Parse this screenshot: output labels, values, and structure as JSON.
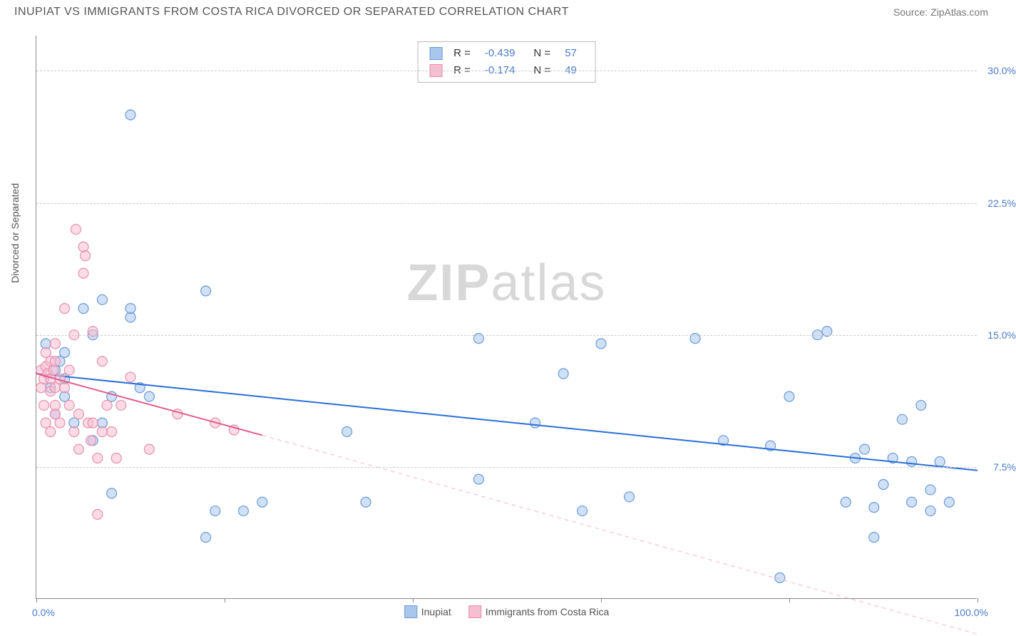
{
  "header": {
    "title": "INUPIAT VS IMMIGRANTS FROM COSTA RICA DIVORCED OR SEPARATED CORRELATION CHART",
    "source": "Source: ZipAtlas.com"
  },
  "chart": {
    "type": "scatter",
    "ylabel": "Divorced or Separated",
    "xlim": [
      0,
      100
    ],
    "ylim": [
      0,
      32
    ],
    "ytick_values": [
      7.5,
      15.0,
      22.5,
      30.0
    ],
    "ytick_labels": [
      "7.5%",
      "15.0%",
      "22.5%",
      "30.0%"
    ],
    "xtick_values": [
      0,
      20,
      40,
      60,
      80,
      100
    ],
    "x_axis_labels": {
      "left": "0.0%",
      "right": "100.0%"
    },
    "background_color": "#ffffff",
    "grid_color": "#cccccc",
    "marker_radius": 7,
    "marker_opacity": 0.55,
    "watermark": {
      "bold": "ZIP",
      "rest": "atlas"
    },
    "stats": [
      {
        "color_fill": "#a9c7ed",
        "color_stroke": "#6a9bd8",
        "r_label": "R =",
        "r": "-0.439",
        "n_label": "N =",
        "n": "57"
      },
      {
        "color_fill": "#f7bdd0",
        "color_stroke": "#e78fb0",
        "r_label": "R =",
        "r": "-0.174",
        "n_label": "N =",
        "n": "49"
      }
    ],
    "legend": [
      {
        "color_fill": "#a9c7ed",
        "color_stroke": "#6a9bd8",
        "label": "Inupiat"
      },
      {
        "color_fill": "#f7bdd0",
        "color_stroke": "#e78fb0",
        "label": "Immigrants from Costa Rica"
      }
    ],
    "series": [
      {
        "name": "inupiat",
        "fill": "#a9c7ed",
        "stroke": "#6a9bd8",
        "regression": {
          "x1": 0,
          "y1": 12.8,
          "x2": 100,
          "y2": 7.3,
          "stroke": "#2a6fd6",
          "width": 2,
          "dash": "none"
        },
        "points": [
          [
            1,
            14.5
          ],
          [
            1.5,
            12.0
          ],
          [
            2,
            13.0
          ],
          [
            2,
            10.5
          ],
          [
            2.5,
            13.5
          ],
          [
            3,
            11.5
          ],
          [
            3,
            12.5
          ],
          [
            3,
            14.0
          ],
          [
            4,
            10.0
          ],
          [
            5,
            16.5
          ],
          [
            6,
            9.0
          ],
          [
            6,
            15.0
          ],
          [
            7,
            17.0
          ],
          [
            7,
            10.0
          ],
          [
            8,
            6.0
          ],
          [
            8,
            11.5
          ],
          [
            10,
            27.5
          ],
          [
            10,
            16.0
          ],
          [
            10,
            16.5
          ],
          [
            11,
            12.0
          ],
          [
            12,
            11.5
          ],
          [
            18,
            17.5
          ],
          [
            18,
            3.5
          ],
          [
            19,
            5.0
          ],
          [
            22,
            5.0
          ],
          [
            24,
            5.5
          ],
          [
            33,
            9.5
          ],
          [
            35,
            5.5
          ],
          [
            47,
            6.8
          ],
          [
            47,
            14.8
          ],
          [
            53,
            10.0
          ],
          [
            56,
            12.8
          ],
          [
            58,
            5.0
          ],
          [
            60,
            14.5
          ],
          [
            63,
            5.8
          ],
          [
            70,
            14.8
          ],
          [
            73,
            9.0
          ],
          [
            78,
            8.7
          ],
          [
            79,
            1.2
          ],
          [
            80,
            11.5
          ],
          [
            83,
            15.0
          ],
          [
            84,
            15.2
          ],
          [
            86,
            5.5
          ],
          [
            87,
            8.0
          ],
          [
            88,
            8.5
          ],
          [
            89,
            3.5
          ],
          [
            89,
            5.2
          ],
          [
            90,
            6.5
          ],
          [
            91,
            8.0
          ],
          [
            92,
            10.2
          ],
          [
            93,
            5.5
          ],
          [
            93,
            7.8
          ],
          [
            94,
            11.0
          ],
          [
            95,
            5.0
          ],
          [
            95,
            6.2
          ],
          [
            96,
            7.8
          ],
          [
            97,
            5.5
          ]
        ]
      },
      {
        "name": "costarica",
        "fill": "#f7bdd0",
        "stroke": "#e78fb0",
        "regression_solid": {
          "x1": 0,
          "y1": 12.8,
          "x2": 24,
          "y2": 9.3,
          "stroke": "#e05a8a",
          "width": 2
        },
        "regression_dash": {
          "x1": 24,
          "y1": 9.3,
          "x2": 100,
          "y2": -2.0,
          "stroke": "#f5b8cc",
          "width": 1,
          "dash": "6,5"
        },
        "points": [
          [
            0.5,
            12.0
          ],
          [
            0.5,
            13.0
          ],
          [
            0.8,
            12.5
          ],
          [
            0.8,
            11.0
          ],
          [
            1,
            13.2
          ],
          [
            1,
            14.0
          ],
          [
            1,
            10.0
          ],
          [
            1.2,
            12.8
          ],
          [
            1.5,
            12.5
          ],
          [
            1.5,
            13.5
          ],
          [
            1.5,
            11.8
          ],
          [
            1.5,
            9.5
          ],
          [
            1.8,
            13.0
          ],
          [
            2,
            12.0
          ],
          [
            2,
            13.5
          ],
          [
            2,
            10.5
          ],
          [
            2,
            14.5
          ],
          [
            2,
            11.0
          ],
          [
            2.5,
            12.5
          ],
          [
            2.5,
            10.0
          ],
          [
            3,
            16.5
          ],
          [
            3,
            12.0
          ],
          [
            3.5,
            11.0
          ],
          [
            3.5,
            13.0
          ],
          [
            4,
            9.5
          ],
          [
            4,
            15.0
          ],
          [
            4.2,
            21.0
          ],
          [
            4.5,
            10.5
          ],
          [
            4.5,
            8.5
          ],
          [
            5,
            20.0
          ],
          [
            5,
            18.5
          ],
          [
            5.2,
            19.5
          ],
          [
            5.5,
            10.0
          ],
          [
            5.8,
            9.0
          ],
          [
            6,
            15.2
          ],
          [
            6,
            10.0
          ],
          [
            6.5,
            8.0
          ],
          [
            6.5,
            4.8
          ],
          [
            7,
            13.5
          ],
          [
            7,
            9.5
          ],
          [
            7.5,
            11.0
          ],
          [
            8,
            9.5
          ],
          [
            8.5,
            8.0
          ],
          [
            9,
            11.0
          ],
          [
            10,
            12.6
          ],
          [
            12,
            8.5
          ],
          [
            15,
            10.5
          ],
          [
            19,
            10.0
          ],
          [
            21,
            9.6
          ]
        ]
      }
    ]
  }
}
